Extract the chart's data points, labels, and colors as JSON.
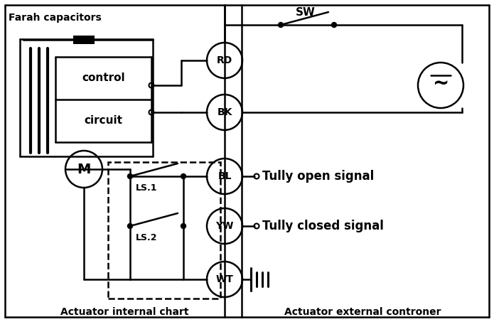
{
  "bg_color": "#ffffff",
  "line_color": "#000000",
  "fig_width": 6.95,
  "fig_height": 4.53,
  "labels": {
    "farah_cap": "Farah capacitors",
    "control": "control",
    "circuit": "circuit",
    "motor": "M",
    "rd": "RD",
    "bk": "BK",
    "bl": "BL",
    "yw": "YW",
    "wt": "WT",
    "sw": "SW",
    "tully_open": "Tully open signal",
    "tully_closed": "Tully closed signal",
    "ls1": "LS.1",
    "ls2": "LS.2",
    "internal": "Actuator internal chart",
    "external": "Actuator external controner"
  }
}
